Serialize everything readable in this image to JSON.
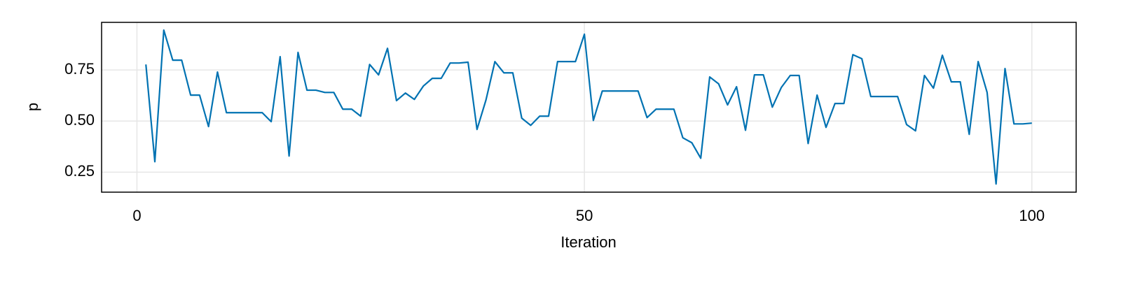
{
  "chart_data": {
    "type": "line",
    "x": [
      1,
      2,
      3,
      4,
      5,
      6,
      7,
      8,
      9,
      10,
      11,
      12,
      13,
      14,
      15,
      16,
      17,
      18,
      19,
      20,
      21,
      22,
      23,
      24,
      25,
      26,
      27,
      28,
      29,
      30,
      31,
      32,
      33,
      34,
      35,
      36,
      37,
      38,
      39,
      40,
      41,
      42,
      43,
      44,
      45,
      46,
      47,
      48,
      49,
      50,
      51,
      52,
      53,
      54,
      55,
      56,
      57,
      58,
      59,
      60,
      61,
      62,
      63,
      64,
      65,
      66,
      67,
      68,
      69,
      70,
      71,
      72,
      73,
      74,
      75,
      76,
      77,
      78,
      79,
      80,
      81,
      82,
      83,
      84,
      85,
      86,
      87,
      88,
      89,
      90,
      91,
      92,
      93,
      94,
      95,
      96,
      97,
      98,
      99,
      100
    ],
    "values": [
      0.777,
      0.301,
      0.945,
      0.798,
      0.798,
      0.627,
      0.627,
      0.473,
      0.74,
      0.541,
      0.541,
      0.541,
      0.541,
      0.541,
      0.497,
      0.815,
      0.329,
      0.836,
      0.651,
      0.651,
      0.64,
      0.64,
      0.558,
      0.558,
      0.524,
      0.777,
      0.726,
      0.856,
      0.6,
      0.637,
      0.606,
      0.671,
      0.709,
      0.709,
      0.784,
      0.784,
      0.788,
      0.459,
      0.603,
      0.791,
      0.736,
      0.736,
      0.514,
      0.479,
      0.524,
      0.524,
      0.791,
      0.791,
      0.791,
      0.925,
      0.503,
      0.647,
      0.647,
      0.647,
      0.647,
      0.647,
      0.517,
      0.558,
      0.558,
      0.558,
      0.418,
      0.394,
      0.318,
      0.716,
      0.682,
      0.579,
      0.668,
      0.455,
      0.726,
      0.726,
      0.568,
      0.664,
      0.723,
      0.723,
      0.39,
      0.627,
      0.469,
      0.586,
      0.586,
      0.825,
      0.805,
      0.62,
      0.62,
      0.62,
      0.62,
      0.483,
      0.452,
      0.723,
      0.661,
      0.822,
      0.692,
      0.692,
      0.435,
      0.791,
      0.64,
      0.192,
      0.757,
      0.486,
      0.486,
      0.49
    ],
    "color": "#0072b2",
    "xlabel": "Iteration",
    "ylabel": "p",
    "xlim": [
      -3.95,
      104.95
    ],
    "xticks": [
      0,
      50,
      100
    ],
    "ylim": [
      0.152,
      0.983
    ],
    "yticks": [
      0.25,
      {
        "value": 0.5,
        "label": "0.50"
      },
      0.75
    ],
    "grid": true
  }
}
